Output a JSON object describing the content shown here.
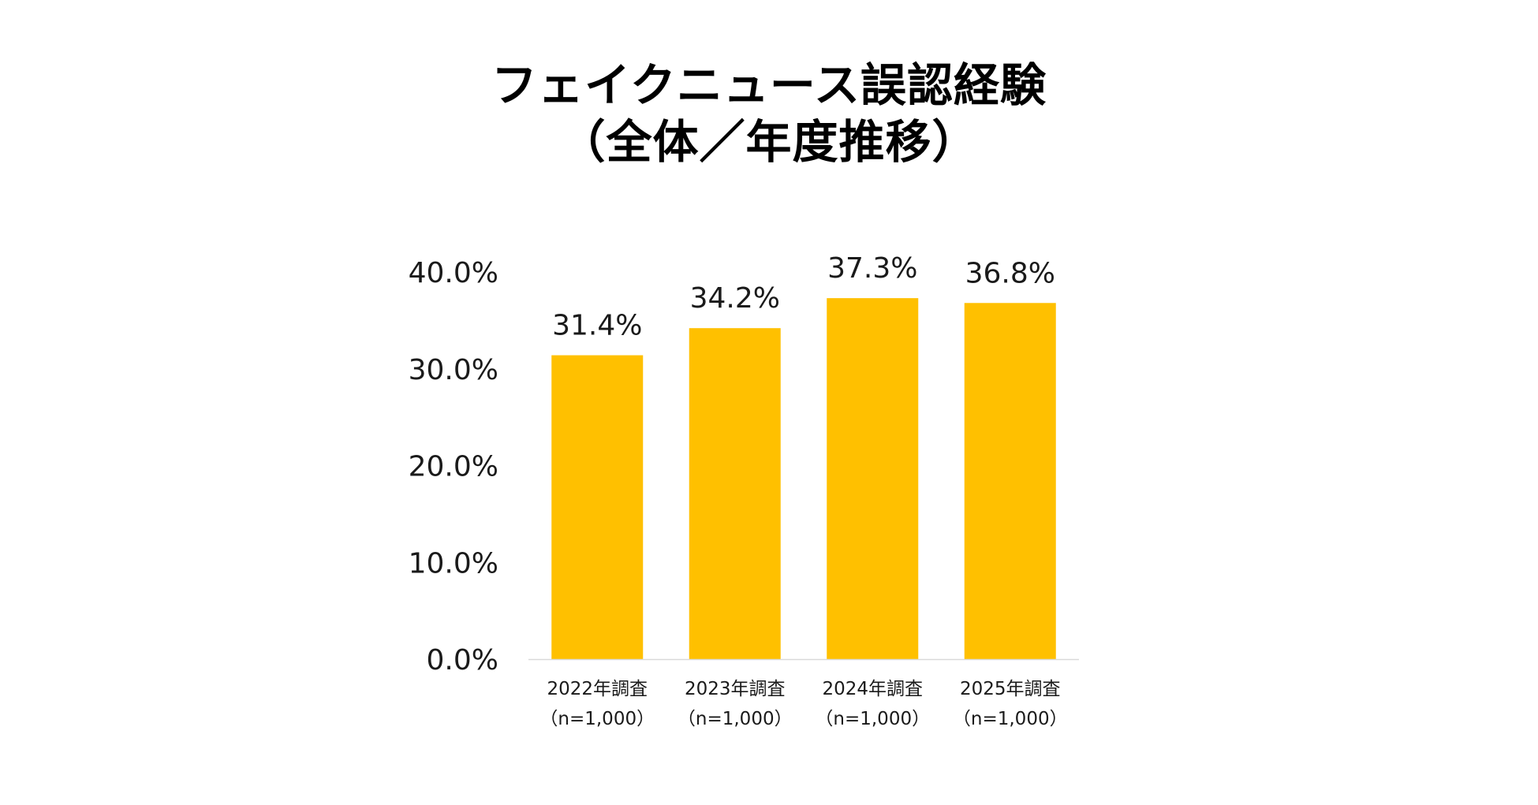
{
  "title": {
    "line1": "フェイクニュース誤認経験",
    "line2": "（全体／年度推移）"
  },
  "colors": {
    "bar": "#FFC000",
    "axis": "#D9D9D9",
    "text": "#1a1a1a"
  },
  "chart_data": {
    "type": "bar",
    "title": "フェイクニュース誤認経験（全体／年度推移）",
    "categories": [
      [
        "2022年調査",
        "（n=1,000）"
      ],
      [
        "2023年調査",
        "（n=1,000）"
      ],
      [
        "2024年調査",
        "（n=1,000）"
      ],
      [
        "2025年調査",
        "（n=1,000）"
      ]
    ],
    "values": [
      31.4,
      34.2,
      37.3,
      36.8
    ],
    "data_labels": [
      "31.4%",
      "34.2%",
      "37.3%",
      "36.8%"
    ],
    "ylim": [
      0,
      40
    ],
    "yticks": [
      0,
      10,
      20,
      30,
      40
    ],
    "ytick_labels": [
      "0.0%",
      "10.0%",
      "20.0%",
      "30.0%",
      "40.0%"
    ],
    "xlabel": "",
    "ylabel": "",
    "grid": false,
    "legend": "none"
  }
}
